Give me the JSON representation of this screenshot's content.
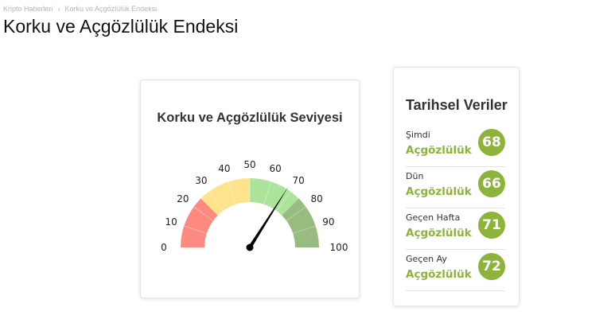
{
  "breadcrumb": {
    "items": [
      "Kripto Haberleri",
      "Korku ve Açgözlülük Endeksi"
    ],
    "separator": "›"
  },
  "page_title": "Korku ve Açgözlülük Endeksi",
  "gauge": {
    "title": "Korku ve Açgözlülük Seviyesi",
    "value": 68,
    "min": 0,
    "max": 100,
    "ticks": [
      "0",
      "10",
      "20",
      "30",
      "40",
      "50",
      "60",
      "70",
      "80",
      "90",
      "100"
    ],
    "bands": [
      {
        "from": 0,
        "to": 25,
        "color": "#fd8a80"
      },
      {
        "from": 25,
        "to": 50,
        "color": "#fde38c"
      },
      {
        "from": 50,
        "to": 75,
        "color": "#ade49c"
      },
      {
        "from": 75,
        "to": 100,
        "color": "#98bb80"
      }
    ]
  },
  "history": {
    "title": "Tarihsel Veriler",
    "accent": "#8db33a",
    "rows": [
      {
        "label": "Şimdi",
        "state": "Açgözlülük",
        "value": "68"
      },
      {
        "label": "Dün",
        "state": "Açgözlülük",
        "value": "66"
      },
      {
        "label": "Geçen Hafta",
        "state": "Açgözlülük",
        "value": "71"
      },
      {
        "label": "Geçen Ay",
        "state": "Açgözlülük",
        "value": "72"
      }
    ]
  }
}
